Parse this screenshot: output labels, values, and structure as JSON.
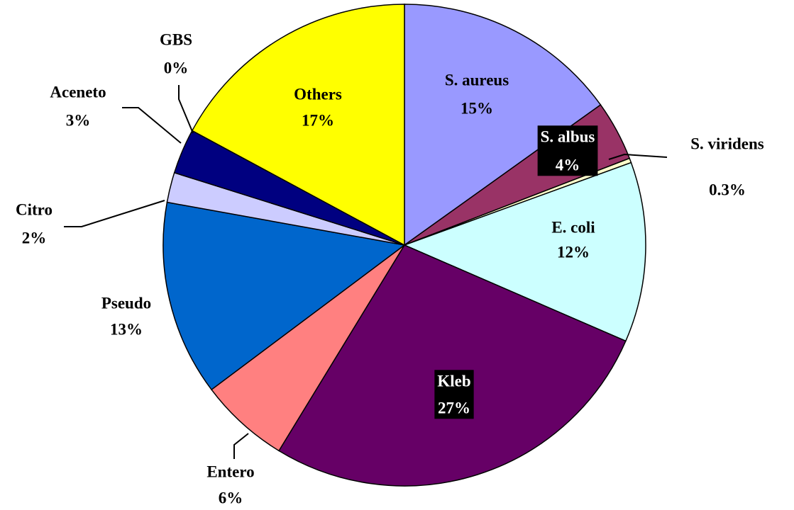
{
  "chart_data": {
    "type": "pie",
    "categories": [
      "S. aureus",
      "S. albus",
      "S. viridens",
      "E. coli",
      "Kleb",
      "Entero",
      "Pseudo",
      "Citro",
      "Aceneto",
      "GBS",
      "Others"
    ],
    "values": [
      15,
      4,
      0.3,
      12,
      27,
      6,
      13,
      2,
      3,
      0,
      17
    ],
    "value_labels": [
      "15%",
      "4%",
      "0.3%",
      "12%",
      "27%",
      "6%",
      "13%",
      "2%",
      "3%",
      "0%",
      "17%"
    ],
    "colors": [
      "#9999ff",
      "#993366",
      "#ffffcc",
      "#ccffff",
      "#660066",
      "#ff8080",
      "#0066cc",
      "#ccccff",
      "#000080",
      "#ff00ff",
      "#ffff00"
    ]
  }
}
